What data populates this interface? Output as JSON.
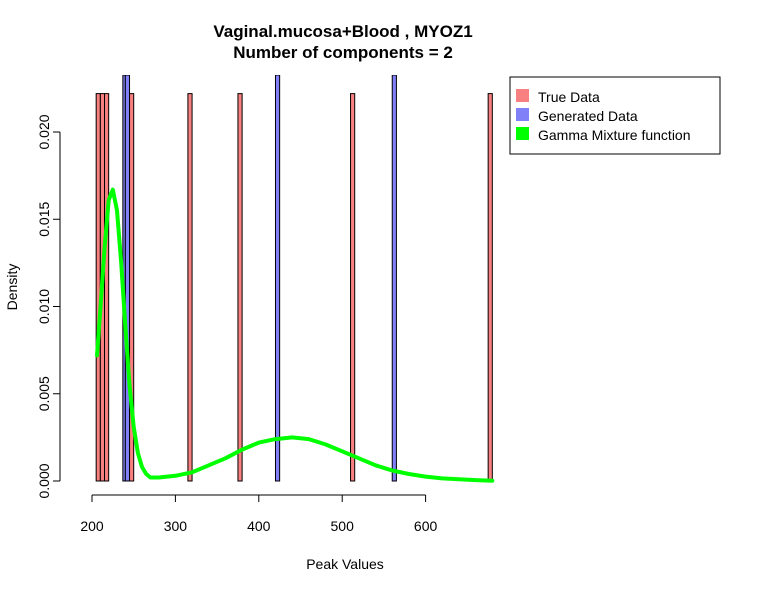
{
  "chart_data": {
    "type": "histogram+density",
    "title": "Vaginal.mucosa+Blood , MYOZ1",
    "subtitle": "Number of components =  2",
    "xlabel": "Peak Values",
    "ylabel": "Density",
    "xlim": [
      200,
      700
    ],
    "ylim": [
      0,
      0.0228
    ],
    "x_ticks": [
      "200",
      "300",
      "400",
      "500",
      "600"
    ],
    "y_ticks": [
      "0.000",
      "0.005",
      "0.010",
      "0.015",
      "0.020"
    ],
    "x_tick_values": [
      200,
      300,
      400,
      500,
      600
    ],
    "y_tick_values": [
      0,
      0.005,
      0.01,
      0.015,
      0.02
    ],
    "legend": {
      "position": "top-right",
      "entries": [
        {
          "label": "True Data",
          "color": "#f88080"
        },
        {
          "label": "Generated Data",
          "color": "#8080f8"
        },
        {
          "label": "Gamma Mixture function",
          "color": "#00ff00"
        }
      ]
    },
    "true_data": {
      "color": "#f88080",
      "bin_width": 5,
      "bars": [
        {
          "x0": 205,
          "x1": 210,
          "density": 0.0222
        },
        {
          "x0": 210,
          "x1": 215,
          "density": 0.0222
        },
        {
          "x0": 215,
          "x1": 220,
          "density": 0.0222
        },
        {
          "x0": 245,
          "x1": 250,
          "density": 0.0222
        },
        {
          "x0": 315,
          "x1": 320,
          "density": 0.0222
        },
        {
          "x0": 375,
          "x1": 380,
          "density": 0.0222
        },
        {
          "x0": 510,
          "x1": 515,
          "density": 0.0222
        },
        {
          "x0": 675,
          "x1": 680,
          "density": 0.0222
        }
      ]
    },
    "generated_data": {
      "color": "#8080f8",
      "bars": [
        {
          "x0": 237,
          "x1": 240,
          "density": 0.03
        },
        {
          "x0": 240,
          "x1": 245,
          "density": 0.03
        },
        {
          "x0": 420,
          "x1": 425,
          "density": 0.03
        },
        {
          "x0": 560,
          "x1": 565,
          "density": 0.03
        }
      ]
    },
    "gamma_mixture": {
      "color": "#00ff00",
      "x": [
        206,
        210,
        215,
        220,
        225,
        230,
        235,
        240,
        245,
        250,
        255,
        260,
        265,
        270,
        280,
        290,
        300,
        320,
        340,
        360,
        380,
        400,
        420,
        440,
        460,
        480,
        500,
        520,
        540,
        560,
        580,
        600,
        620,
        640,
        660,
        680
      ],
      "y": [
        0.0072,
        0.0098,
        0.0133,
        0.0161,
        0.0167,
        0.0155,
        0.0125,
        0.0088,
        0.0055,
        0.0031,
        0.0016,
        0.0008,
        0.0004,
        0.0002,
        0.0002,
        0.00025,
        0.0003,
        0.0005,
        0.0009,
        0.0013,
        0.0018,
        0.0022,
        0.0024,
        0.0025,
        0.0024,
        0.0021,
        0.0017,
        0.0013,
        0.0009,
        0.0006,
        0.0004,
        0.00025,
        0.00015,
        0.0001,
        5e-05,
        2e-05
      ]
    }
  }
}
